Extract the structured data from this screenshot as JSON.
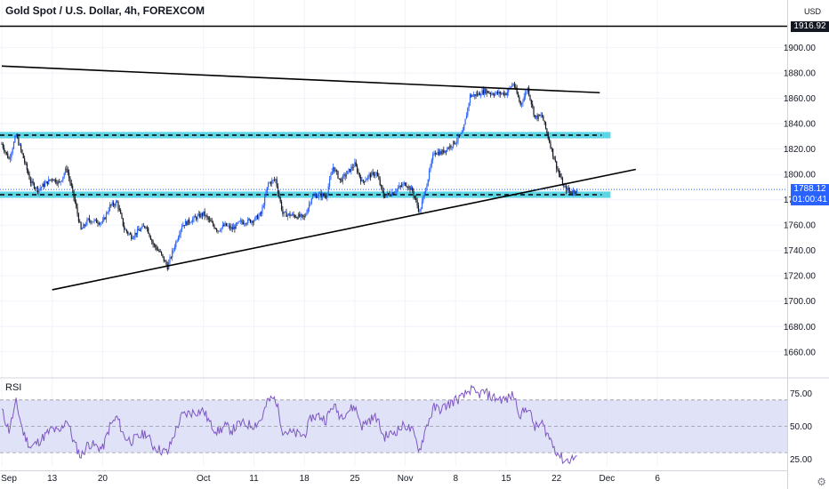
{
  "header": {
    "title": "Gold Spot / U.S. Dollar, 4h, FOREXCOM",
    "currency": "USD"
  },
  "price_badges": {
    "top_line": "1916.92",
    "last_price": "1788.12",
    "countdown": "01:00:41"
  },
  "rsi_label": "RSI",
  "colors": {
    "up_candle": "#2962ff",
    "down_candle": "#131722",
    "zone_fill": "#4dd0e1",
    "rsi_line": "#7e57c2",
    "rsi_band": "#d6d9f5",
    "last_price_badge": "#2962ff",
    "top_badge": "#131722"
  },
  "chart_data": [
    {
      "type": "candlestick",
      "title": "Gold Spot / U.S. Dollar, 4h, FOREXCOM",
      "ylim": [
        1643,
        1925
      ],
      "y_ticks": [
        1660.0,
        1680.0,
        1700.0,
        1720.0,
        1740.0,
        1760.0,
        1780.0,
        1800.0,
        1820.0,
        1840.0,
        1860.0,
        1880.0,
        1900.0
      ],
      "x_ticks": [
        "Sep",
        "13",
        "20",
        "Oct",
        "11",
        "18",
        "25",
        "Nov",
        "8",
        "15",
        "22",
        "Dec",
        "6"
      ],
      "x_tick_dates": [
        "2021-09-06",
        "2021-09-13",
        "2021-09-20",
        "2021-10-04",
        "2021-10-11",
        "2021-10-18",
        "2021-10-25",
        "2021-11-01",
        "2021-11-08",
        "2021-11-15",
        "2021-11-22",
        "2021-11-29",
        "2021-12-06"
      ],
      "close_path": [
        [
          "2021-09-06",
          1824
        ],
        [
          "2021-09-07",
          1812
        ],
        [
          "2021-09-08",
          1831
        ],
        [
          "2021-09-09",
          1813
        ],
        [
          "2021-09-10",
          1794
        ],
        [
          "2021-09-11",
          1788
        ],
        [
          "2021-09-13",
          1797
        ],
        [
          "2021-09-14",
          1793
        ],
        [
          "2021-09-15",
          1805
        ],
        [
          "2021-09-16",
          1782
        ],
        [
          "2021-09-17",
          1756
        ],
        [
          "2021-09-18",
          1764
        ],
        [
          "2021-09-20",
          1762
        ],
        [
          "2021-09-21",
          1775
        ],
        [
          "2021-09-22",
          1778
        ],
        [
          "2021-09-23",
          1757
        ],
        [
          "2021-09-24",
          1751
        ],
        [
          "2021-09-26",
          1760
        ],
        [
          "2021-09-27",
          1745
        ],
        [
          "2021-09-28",
          1738
        ],
        [
          "2021-09-29",
          1727
        ],
        [
          "2021-09-30",
          1744
        ],
        [
          "2021-10-01",
          1760
        ],
        [
          "2021-10-02",
          1763
        ],
        [
          "2021-10-04",
          1769
        ],
        [
          "2021-10-05",
          1762
        ],
        [
          "2021-10-06",
          1756
        ],
        [
          "2021-10-07",
          1760
        ],
        [
          "2021-10-08",
          1757
        ],
        [
          "2021-10-09",
          1762
        ],
        [
          "2021-10-11",
          1764
        ],
        [
          "2021-10-12",
          1769
        ],
        [
          "2021-10-13",
          1793
        ],
        [
          "2021-10-14",
          1796
        ],
        [
          "2021-10-15",
          1769
        ],
        [
          "2021-10-16",
          1768
        ],
        [
          "2021-10-18",
          1766
        ],
        [
          "2021-10-19",
          1782
        ],
        [
          "2021-10-20",
          1784
        ],
        [
          "2021-10-21",
          1783
        ],
        [
          "2021-10-22",
          1806
        ],
        [
          "2021-10-23",
          1795
        ],
        [
          "2021-10-25",
          1808
        ],
        [
          "2021-10-26",
          1794
        ],
        [
          "2021-10-27",
          1799
        ],
        [
          "2021-10-28",
          1801
        ],
        [
          "2021-10-29",
          1783
        ],
        [
          "2021-10-30",
          1785
        ],
        [
          "2021-11-01",
          1793
        ],
        [
          "2021-11-02",
          1787
        ],
        [
          "2021-11-03",
          1770
        ],
        [
          "2021-11-04",
          1793
        ],
        [
          "2021-11-05",
          1818
        ],
        [
          "2021-11-06",
          1817
        ],
        [
          "2021-11-08",
          1826
        ],
        [
          "2021-11-09",
          1833
        ],
        [
          "2021-11-10",
          1862
        ],
        [
          "2021-11-11",
          1863
        ],
        [
          "2021-11-12",
          1866
        ],
        [
          "2021-11-13",
          1864
        ],
        [
          "2021-11-15",
          1864
        ],
        [
          "2021-11-16",
          1872
        ],
        [
          "2021-11-17",
          1855
        ],
        [
          "2021-11-18",
          1868
        ],
        [
          "2021-11-19",
          1845
        ],
        [
          "2021-11-20",
          1846
        ],
        [
          "2021-11-22",
          1806
        ],
        [
          "2021-11-23",
          1790
        ],
        [
          "2021-11-24",
          1786
        ],
        [
          "2021-11-25",
          1788.12
        ]
      ],
      "horizontal_lines": [
        1916.92
      ],
      "zones": [
        {
          "from": 1828.5,
          "to": 1833.5,
          "start": "2021-09-06",
          "end": "2021-11-29"
        },
        {
          "from": 1781.5,
          "to": 1786.5,
          "start": "2021-09-06",
          "end": "2021-11-29"
        }
      ],
      "trendlines": [
        {
          "points": [
            [
              "2021-09-06",
              1885.5
            ],
            [
              "2021-11-28",
              1864.5
            ]
          ]
        },
        {
          "points": [
            [
              "2021-09-13",
              1709
            ],
            [
              "2021-12-03",
              1804
            ]
          ]
        }
      ],
      "last_price": 1788.12
    },
    {
      "type": "line",
      "title": "RSI",
      "ylim": [
        20,
        82
      ],
      "y_ticks": [
        25.0,
        50.0,
        75.0
      ],
      "band": [
        30,
        70
      ],
      "series": [
        {
          "values": [
            [
              "2021-09-06",
              62
            ],
            [
              "2021-09-07",
              47
            ],
            [
              "2021-09-08",
              68
            ],
            [
              "2021-09-09",
              45
            ],
            [
              "2021-09-10",
              34
            ],
            [
              "2021-09-11",
              38
            ],
            [
              "2021-09-13",
              48
            ],
            [
              "2021-09-14",
              45
            ],
            [
              "2021-09-15",
              56
            ],
            [
              "2021-09-16",
              38
            ],
            [
              "2021-09-17",
              27
            ],
            [
              "2021-09-18",
              37
            ],
            [
              "2021-09-20",
              33
            ],
            [
              "2021-09-21",
              50
            ],
            [
              "2021-09-22",
              57
            ],
            [
              "2021-09-23",
              42
            ],
            [
              "2021-09-24",
              39
            ],
            [
              "2021-09-26",
              45
            ],
            [
              "2021-09-27",
              35
            ],
            [
              "2021-09-28",
              32
            ],
            [
              "2021-09-29",
              30
            ],
            [
              "2021-09-30",
              45
            ],
            [
              "2021-10-01",
              58
            ],
            [
              "2021-10-02",
              60
            ],
            [
              "2021-10-04",
              62
            ],
            [
              "2021-10-05",
              51
            ],
            [
              "2021-10-06",
              46
            ],
            [
              "2021-10-07",
              50
            ],
            [
              "2021-10-08",
              47
            ],
            [
              "2021-10-09",
              52
            ],
            [
              "2021-10-11",
              51
            ],
            [
              "2021-10-12",
              55
            ],
            [
              "2021-10-13",
              70
            ],
            [
              "2021-10-14",
              71
            ],
            [
              "2021-10-15",
              47
            ],
            [
              "2021-10-16",
              45
            ],
            [
              "2021-10-18",
              43
            ],
            [
              "2021-10-19",
              57
            ],
            [
              "2021-10-20",
              58
            ],
            [
              "2021-10-21",
              55
            ],
            [
              "2021-10-22",
              66
            ],
            [
              "2021-10-23",
              58
            ],
            [
              "2021-10-25",
              65
            ],
            [
              "2021-10-26",
              50
            ],
            [
              "2021-10-27",
              55
            ],
            [
              "2021-10-28",
              57
            ],
            [
              "2021-10-29",
              42
            ],
            [
              "2021-10-30",
              44
            ],
            [
              "2021-11-01",
              51
            ],
            [
              "2021-11-02",
              46
            ],
            [
              "2021-11-03",
              32
            ],
            [
              "2021-11-04",
              51
            ],
            [
              "2021-11-05",
              64
            ],
            [
              "2021-11-06",
              63
            ],
            [
              "2021-11-08",
              70
            ],
            [
              "2021-11-09",
              72
            ],
            [
              "2021-11-10",
              78
            ],
            [
              "2021-11-11",
              74
            ],
            [
              "2021-11-12",
              76
            ],
            [
              "2021-11-13",
              72
            ],
            [
              "2021-11-15",
              70
            ],
            [
              "2021-11-16",
              74
            ],
            [
              "2021-11-17",
              58
            ],
            [
              "2021-11-18",
              65
            ],
            [
              "2021-11-19",
              49
            ],
            [
              "2021-11-20",
              52
            ],
            [
              "2021-11-22",
              31
            ],
            [
              "2021-11-23",
              24
            ],
            [
              "2021-11-24",
              25
            ],
            [
              "2021-11-25",
              28
            ]
          ]
        }
      ]
    }
  ]
}
